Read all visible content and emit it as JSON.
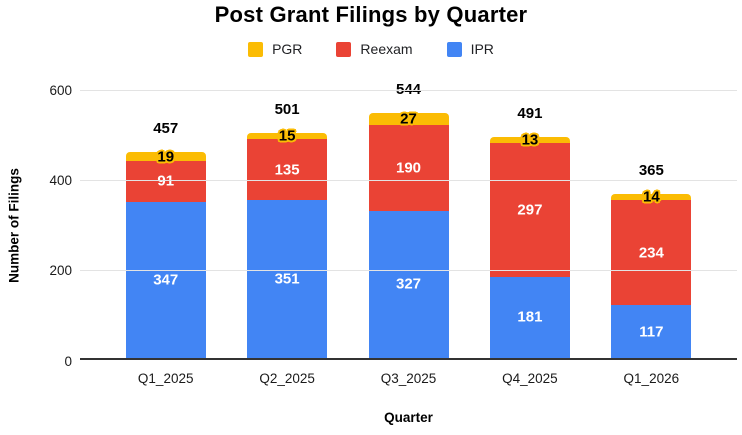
{
  "colors": {
    "background": "#FFFFFF",
    "gridline": "#E3E3E3",
    "axis_line": "#333333",
    "title_text": "#000000",
    "tick_text": "#1A1A1A",
    "segment_label_light": "#FFFFFF",
    "segment_label_dark": "#000000"
  },
  "chart_data": {
    "type": "bar",
    "stacked": true,
    "title": "Post Grant Filings by Quarter",
    "xlabel": "Quarter",
    "ylabel": "Number of Filings",
    "categories": [
      "Q1_2025",
      "Q2_2025",
      "Q3_2025",
      "Q4_2025",
      "Q1_2026"
    ],
    "series": [
      {
        "name": "IPR",
        "color": "#4285F4",
        "label_style": "white",
        "values": [
          347,
          351,
          327,
          181,
          117
        ]
      },
      {
        "name": "Reexam",
        "color": "#EA4335",
        "label_style": "white",
        "values": [
          91,
          135,
          190,
          297,
          234
        ]
      },
      {
        "name": "PGR",
        "color": "#FBBC04",
        "label_style": "black-on-halo",
        "values": [
          19,
          15,
          27,
          13,
          14
        ]
      }
    ],
    "totals": [
      457,
      501,
      544,
      491,
      365
    ],
    "ylim": [
      0,
      600
    ],
    "yticks": [
      0,
      200,
      400,
      600
    ],
    "grid": true,
    "legend_position": "top",
    "legend_order": [
      "PGR",
      "Reexam",
      "IPR"
    ]
  }
}
